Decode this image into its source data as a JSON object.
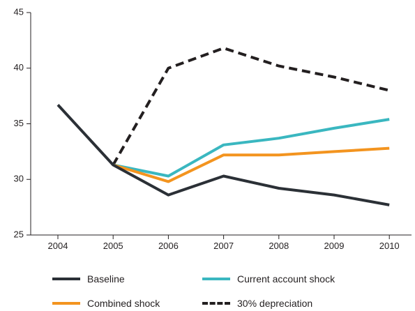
{
  "chart_data": {
    "type": "line",
    "categories": [
      "2004",
      "2005",
      "2006",
      "2007",
      "2008",
      "2009",
      "2010"
    ],
    "ylim": [
      25,
      45
    ],
    "yticks": [
      "25",
      "30",
      "35",
      "40",
      "45"
    ],
    "grid": false,
    "legend_position": "bottom",
    "title": "",
    "xlabel": "",
    "ylabel": "",
    "series": [
      {
        "name": "Baseline",
        "color": "#2b3036",
        "dash": "solid",
        "values": [
          36.7,
          31.3,
          28.6,
          30.3,
          29.2,
          28.6,
          27.7
        ]
      },
      {
        "name": "Current account shock",
        "color": "#3ab7c0",
        "dash": "solid",
        "values": [
          null,
          31.3,
          30.3,
          33.1,
          33.7,
          34.6,
          35.4
        ]
      },
      {
        "name": "Combined shock",
        "color": "#f3941f",
        "dash": "solid",
        "values": [
          null,
          31.3,
          29.8,
          32.2,
          32.2,
          32.5,
          32.8
        ]
      },
      {
        "name": "30% depreciation",
        "color": "#231f20",
        "dash": "dashed",
        "values": [
          null,
          31.3,
          40.0,
          41.8,
          40.2,
          39.2,
          38.0
        ]
      }
    ]
  }
}
